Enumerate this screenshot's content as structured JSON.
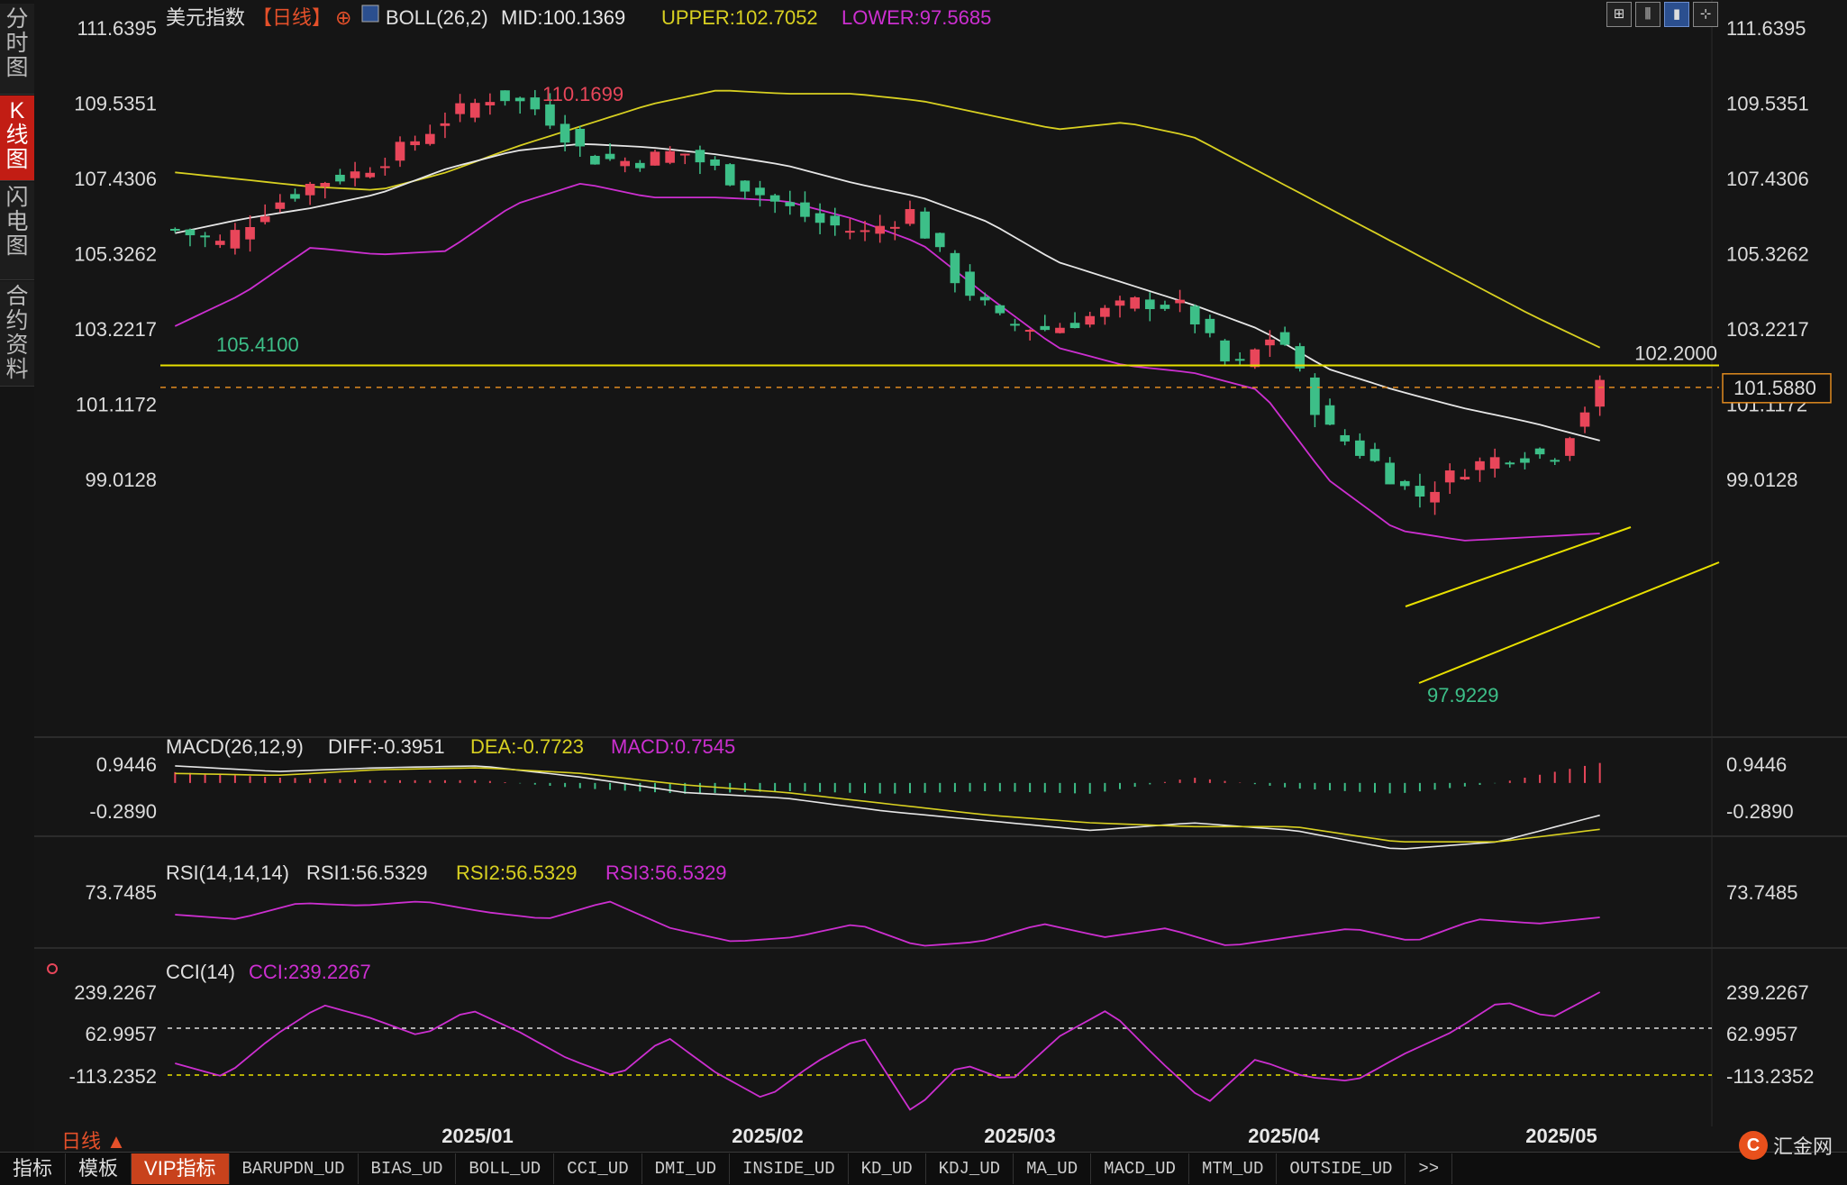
{
  "sidebar": {
    "tabs": [
      {
        "label": "分时图",
        "active": false
      },
      {
        "label": "K线图",
        "active": true
      },
      {
        "label": "闪电图",
        "active": false
      },
      {
        "label": "合约资料",
        "active": false
      }
    ]
  },
  "header": {
    "symbol": "美元指数",
    "period": "【日线】",
    "add_glyph": "⊕",
    "boll_label": "BOLL(26,2)",
    "mid": "MID:100.1369",
    "upper": "UPPER:102.7052",
    "lower": "LOWER:97.5685"
  },
  "toolbar_icons": [
    "grid-icon",
    "bars-icon",
    "candle-icon",
    "crosshair-icon"
  ],
  "price_axis": [
    "111.6395",
    "109.5351",
    "107.4306",
    "105.3262",
    "103.2217",
    "101.1172",
    "99.0128"
  ],
  "annotations": {
    "high_label": "110.1699",
    "low_label": "105.4100",
    "recent_low_label": "97.9229",
    "resistance_label": "102.2000",
    "last_price_label": "101.5880"
  },
  "macd": {
    "label": "MACD(26,12,9)",
    "diff": "DIFF:-0.3951",
    "dea": "DEA:-0.7723",
    "macd": "MACD:0.7545",
    "axis": [
      "0.9446",
      "-0.2890"
    ]
  },
  "rsi": {
    "label": "RSI(14,14,14)",
    "rsi1": "RSI1:56.5329",
    "rsi2": "RSI2:56.5329",
    "rsi3": "RSI3:56.5329",
    "axis": [
      "73.7485"
    ]
  },
  "cci": {
    "label": "CCI(14)",
    "cci": "CCI:239.2267",
    "axis": [
      "239.2267",
      "62.9957",
      "-113.2352"
    ]
  },
  "months": [
    "2025/01",
    "2025/02",
    "2025/03",
    "2025/04",
    "2025/05"
  ],
  "period_indicator": "日线 ▲",
  "bottom_tabs": [
    {
      "label": "指标",
      "style": "main"
    },
    {
      "label": "模板",
      "style": "main"
    },
    {
      "label": "VIP指标",
      "style": "active"
    },
    {
      "label": "BARUPDN_UD",
      "style": "sm"
    },
    {
      "label": "BIAS_UD",
      "style": "sm"
    },
    {
      "label": "BOLL_UD",
      "style": "sm"
    },
    {
      "label": "CCI_UD",
      "style": "sm"
    },
    {
      "label": "DMI_UD",
      "style": "sm"
    },
    {
      "label": "INSIDE_UD",
      "style": "sm"
    },
    {
      "label": "KD_UD",
      "style": "sm"
    },
    {
      "label": "KDJ_UD",
      "style": "sm"
    },
    {
      "label": "MA_UD",
      "style": "sm"
    },
    {
      "label": "MACD_UD",
      "style": "sm"
    },
    {
      "label": "MTM_UD",
      "style": "sm"
    },
    {
      "label": "OUTSIDE_UD",
      "style": "sm"
    },
    {
      "label": ">>",
      "style": "sm"
    }
  ],
  "logo": {
    "mark": "C",
    "text": "汇金网"
  },
  "colors": {
    "up": "#e8465a",
    "down": "#3dbf88",
    "upper": "#d8d021",
    "mid": "#e6e6e6",
    "lower": "#cc2fd0",
    "level": "#e8e000"
  },
  "chart_data": {
    "type": "candlestick",
    "price_range": [
      97.9229,
      110.1699
    ],
    "boll_upper_approx": [
      107.6,
      107.4,
      107.2,
      107.1,
      107.6,
      108.3,
      108.9,
      109.5,
      109.9,
      109.8,
      109.8,
      109.6,
      109.2,
      108.8,
      109.0,
      108.6,
      107.6,
      106.6,
      105.6,
      104.6,
      103.6,
      102.7
    ],
    "boll_mid_approx": [
      105.9,
      106.3,
      106.6,
      107.0,
      107.7,
      108.2,
      108.4,
      108.3,
      108.1,
      107.8,
      107.3,
      106.9,
      106.2,
      105.1,
      104.5,
      103.9,
      103.2,
      102.1,
      101.5,
      101.0,
      100.6,
      100.1
    ],
    "boll_lower_approx": [
      103.3,
      104.2,
      105.5,
      105.3,
      105.4,
      106.7,
      107.3,
      106.9,
      106.9,
      106.8,
      106.3,
      105.6,
      104.1,
      102.7,
      102.2,
      102.0,
      101.5,
      99.0,
      97.6,
      97.3,
      97.4,
      97.5
    ],
    "levels": [
      102.2,
      101.588
    ]
  }
}
